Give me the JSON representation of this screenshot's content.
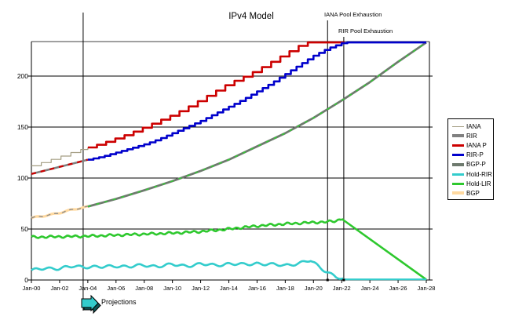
{
  "chart_data": {
    "type": "line",
    "title": "IPv4 Model",
    "xlabel": "",
    "ylabel": "",
    "grid": "horizontal",
    "legend_position": "right",
    "x_range_years": [
      0,
      28
    ],
    "y_axis": {
      "tick_labels": [
        "0",
        "50",
        "100",
        "150",
        "200"
      ],
      "tick_values": [
        0,
        50,
        100,
        150,
        200
      ],
      "max_display": 235
    },
    "x_axis": {
      "tick_labels": [
        "Jan-00",
        "Jan-02",
        "Jan-04",
        "Jan-06",
        "Jan-08",
        "Jan-10",
        "Jan-12",
        "Jan-14",
        "Jan-16",
        "Jan-18",
        "Jan-20",
        "Jan-22",
        "Jan-24",
        "Jan-26",
        "Jan-28"
      ],
      "tick_years": [
        0,
        2,
        4,
        6,
        8,
        10,
        12,
        14,
        16,
        18,
        20,
        22,
        24,
        26,
        28
      ]
    },
    "annotations": {
      "iana_exhaustion": {
        "text": "IANA Pool Exhaustion",
        "year": 21.0
      },
      "rir_exhaustion": {
        "text": "RIR Pool Exhaustion",
        "year": 22.15
      },
      "projections": {
        "text": "Projections",
        "year": 3.67
      }
    },
    "colors": {
      "iana": "#a39d82",
      "rir": "#808080",
      "iana_p": "#cc0000",
      "rir_p": "#0000cc",
      "bgp_p": "#6e7a6e",
      "hold_rir": "#33cccc",
      "hold_lir": "#2ec82e",
      "bgp": "#ffd9a0",
      "grid": "#000000",
      "top_border": "#808080",
      "arrow_fill": "#33cccc"
    },
    "series": [
      {
        "name": "RIR",
        "color": "#808080",
        "width": 2.6,
        "mode": "line",
        "points": [
          [
            0,
            104
          ],
          [
            1,
            107.5
          ],
          [
            2,
            111
          ],
          [
            3,
            114.5
          ],
          [
            4,
            118
          ]
        ],
        "overlay": {
          "color": "#cc0000",
          "width": 2.3,
          "dash": "6 6"
        }
      },
      {
        "name": "BGP",
        "color": "#ffd9a0",
        "width": 3.2,
        "mode": "wiggle",
        "amp": 0.6,
        "period": 1.2,
        "points": [
          [
            0,
            60.5
          ],
          [
            2,
            66
          ],
          [
            4,
            72
          ]
        ],
        "overlay": {
          "color": "#8a8a8a",
          "width": 1.3,
          "dash": "5 5"
        }
      },
      {
        "name": "IANA",
        "color": "#a39d82",
        "width": 1.2,
        "mode": "step",
        "step": 0.7,
        "points": [
          [
            0,
            112
          ],
          [
            1,
            116.5
          ],
          [
            2,
            121
          ],
          [
            3,
            126
          ],
          [
            4,
            130
          ]
        ]
      },
      {
        "name": "BGP-P",
        "color": "#6e7a6e",
        "width": 2.8,
        "mode": "line",
        "points": [
          [
            4,
            72
          ],
          [
            6,
            79.5
          ],
          [
            8,
            88
          ],
          [
            10,
            97
          ],
          [
            12,
            107
          ],
          [
            14,
            118
          ],
          [
            16,
            131
          ],
          [
            18,
            144
          ],
          [
            20,
            159
          ],
          [
            22,
            176
          ],
          [
            24,
            194
          ],
          [
            26,
            214
          ],
          [
            28,
            233
          ]
        ],
        "overlay": {
          "color": "#33cc33",
          "width": 1.5,
          "dash": "4 7"
        }
      },
      {
        "name": "IANA P",
        "color": "#cc0000",
        "width": 2.6,
        "mode": "step",
        "step": 0.65,
        "points": [
          [
            4,
            130
          ],
          [
            5,
            134
          ],
          [
            6,
            139
          ],
          [
            7,
            144
          ],
          [
            8,
            150
          ],
          [
            9,
            156
          ],
          [
            10,
            162
          ],
          [
            11,
            169
          ],
          [
            12,
            177
          ],
          [
            13,
            185
          ],
          [
            14,
            193
          ],
          [
            15,
            199
          ],
          [
            16,
            206
          ],
          [
            17,
            214
          ],
          [
            18,
            222
          ],
          [
            19,
            230
          ],
          [
            19.6,
            233
          ],
          [
            22.2,
            233
          ]
        ]
      },
      {
        "name": "RIR-P",
        "color": "#0000cc",
        "width": 2.6,
        "mode": "step",
        "step": 0.4,
        "points": [
          [
            4,
            118
          ],
          [
            5,
            121
          ],
          [
            6,
            125
          ],
          [
            7,
            129
          ],
          [
            8,
            133
          ],
          [
            9,
            138
          ],
          [
            10,
            144
          ],
          [
            11,
            150
          ],
          [
            12,
            156
          ],
          [
            13,
            163
          ],
          [
            14,
            170
          ],
          [
            15,
            177
          ],
          [
            16,
            185
          ],
          [
            17,
            193
          ],
          [
            18,
            202
          ],
          [
            19,
            211
          ],
          [
            20,
            220
          ],
          [
            21,
            227
          ],
          [
            22.15,
            233
          ],
          [
            28,
            233
          ]
        ]
      },
      {
        "name": "Hold-LIR",
        "color": "#2ec82e",
        "width": 2.6,
        "mode": "wiggle",
        "amp": 0.9,
        "period": 0.6,
        "points": [
          [
            0,
            42
          ],
          [
            2,
            42.5
          ],
          [
            4,
            43
          ],
          [
            6,
            44
          ],
          [
            8,
            45
          ],
          [
            10,
            46
          ],
          [
            12,
            47.5
          ],
          [
            14,
            50
          ],
          [
            16,
            53
          ],
          [
            18,
            55
          ],
          [
            20,
            56.5
          ],
          [
            21,
            57
          ],
          [
            21.6,
            58
          ],
          [
            22,
            60
          ]
        ]
      },
      {
        "name": "Hold-LIR-decline",
        "color": "#2ec82e",
        "width": 2.6,
        "mode": "line",
        "points": [
          [
            22,
            60
          ],
          [
            28,
            0.5
          ]
        ]
      },
      {
        "name": "Hold-RIR",
        "color": "#33cccc",
        "width": 2.6,
        "mode": "wiggle",
        "amp": 1.2,
        "period": 1.05,
        "points": [
          [
            0,
            9
          ],
          [
            1,
            12
          ],
          [
            2,
            11
          ],
          [
            3,
            13.5
          ],
          [
            4,
            13
          ],
          [
            5,
            12.5
          ],
          [
            6,
            14
          ],
          [
            7,
            13
          ],
          [
            8,
            14.5
          ],
          [
            9,
            13.5
          ],
          [
            10,
            15
          ],
          [
            11,
            14
          ],
          [
            12,
            15.5
          ],
          [
            13,
            14.5
          ],
          [
            14,
            16
          ],
          [
            15,
            15
          ],
          [
            16,
            16.5
          ],
          [
            17,
            15
          ],
          [
            18,
            14.5
          ],
          [
            19,
            16.5
          ],
          [
            19.8,
            19
          ],
          [
            20.5,
            12
          ],
          [
            21,
            8
          ],
          [
            21.6,
            3
          ],
          [
            22.1,
            0.6
          ]
        ]
      },
      {
        "name": "Hold-RIR-flat",
        "color": "#33cccc",
        "width": 2.2,
        "mode": "line",
        "points": [
          [
            22.1,
            0.6
          ],
          [
            28,
            0.6
          ]
        ]
      }
    ],
    "legend": [
      {
        "label": "IANA",
        "color": "#a39d82",
        "thick": 1
      },
      {
        "label": "RIR",
        "color": "#808080",
        "thick": 4
      },
      {
        "label": "IANA P",
        "color": "#cc0000",
        "thick": 3
      },
      {
        "label": "RIR-P",
        "color": "#0000cc",
        "thick": 3
      },
      {
        "label": "BGP-P",
        "color": "#6e7a6e",
        "thick": 4
      },
      {
        "label": "Hold-RIR",
        "color": "#33cccc",
        "thick": 3
      },
      {
        "label": "Hold-LIR",
        "color": "#2ec82e",
        "thick": 3
      },
      {
        "label": "BGP",
        "color": "#ffd9a0",
        "thick": 4
      }
    ]
  }
}
